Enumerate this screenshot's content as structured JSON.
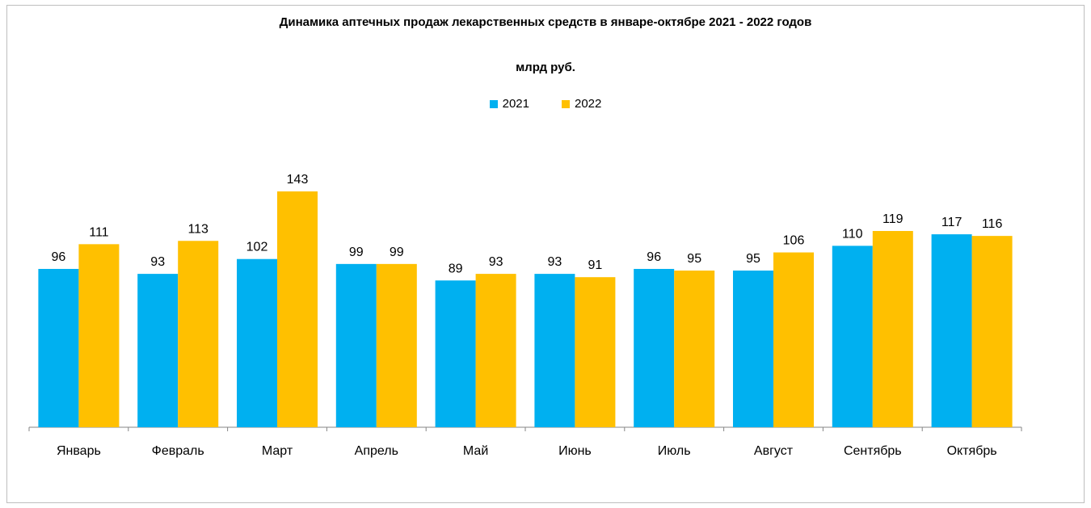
{
  "chart_data": {
    "type": "bar",
    "title": "Динамика аптечных продаж лекарственных средств в январе-октябре  2021 - 2022 годов",
    "subtitle": "млрд руб.",
    "categories": [
      "Январь",
      "Февраль",
      "Март",
      "Апрель",
      "Май",
      "Июнь",
      "Июль",
      "Август",
      "Сентябрь",
      "Октябрь"
    ],
    "series": [
      {
        "name": "2021",
        "color": "#00b0f0",
        "values": [
          96,
          93,
          102,
          99,
          89,
          93,
          96,
          95,
          110,
          117
        ]
      },
      {
        "name": "2022",
        "color": "#ffc000",
        "values": [
          111,
          113,
          143,
          99,
          93,
          91,
          95,
          106,
          119,
          116
        ]
      }
    ],
    "ylim": [
      0,
      143
    ],
    "grid": false,
    "legend_position": "top-center"
  }
}
